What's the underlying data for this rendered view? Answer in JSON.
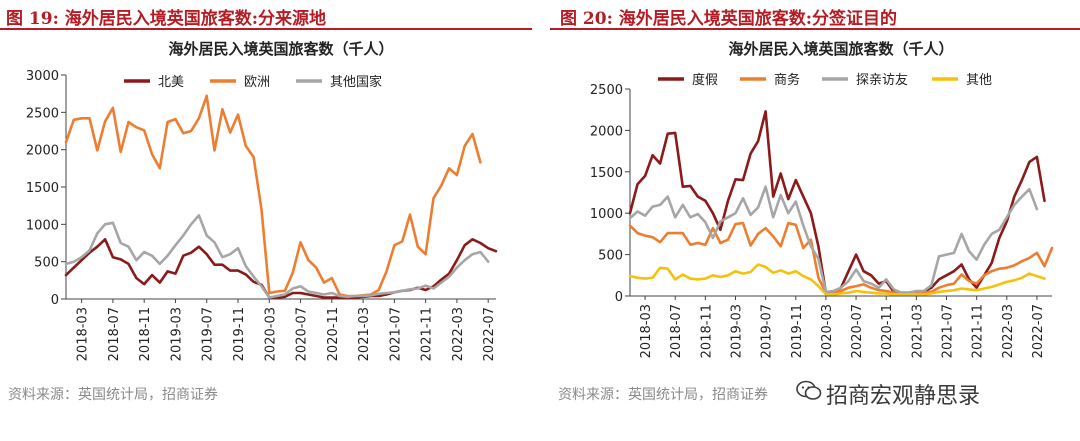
{
  "colors": {
    "title_red": "#b51c24",
    "source_gray": "#8a8a8a"
  },
  "left": {
    "figure_title": "图 19:  海外居民入境英国旅客数:分来源地",
    "source": "资料来源：英国统计局，招商证券"
  },
  "right": {
    "figure_title": "图 20:  海外居民入境英国旅客数:分签证目的",
    "source": "资料来源：英国统计局，招商证券"
  },
  "watermark": {
    "text": "招商宏观静思录",
    "icon": "wechat-icon"
  },
  "chart_data": [
    {
      "type": "line",
      "title": "海外居民入境英国旅客数（千人）",
      "ylim": [
        0,
        3000
      ],
      "yticks": [
        "0",
        "500",
        "1000",
        "1500",
        "2000",
        "2500",
        "3000"
      ],
      "xtick_labels": [
        "2018-03",
        "2018-07",
        "2018-11",
        "2019-03",
        "2019-07",
        "2019-11",
        "2020-03",
        "2020-07",
        "2020-11",
        "2021-03",
        "2021-07",
        "2021-11",
        "2022-03",
        "2022-07"
      ],
      "x_start": "2018-01",
      "series": [
        {
          "name": "北美",
          "color": "#8b1a1a",
          "values": [
            320,
            420,
            520,
            620,
            700,
            800,
            560,
            530,
            470,
            280,
            200,
            320,
            220,
            370,
            340,
            580,
            620,
            700,
            600,
            460,
            460,
            380,
            380,
            330,
            230,
            190,
            20,
            20,
            30,
            80,
            80,
            60,
            40,
            20,
            20,
            20,
            20,
            20,
            30,
            40,
            40,
            60,
            90,
            110,
            120,
            150,
            120,
            170,
            260,
            340,
            520,
            720,
            800,
            750,
            680,
            640
          ]
        },
        {
          "name": "欧洲",
          "color": "#ed7d31",
          "values": [
            2100,
            2400,
            2420,
            2420,
            1990,
            2380,
            2560,
            1970,
            2370,
            2300,
            2260,
            1940,
            1750,
            2370,
            2410,
            2220,
            2250,
            2420,
            2720,
            1990,
            2540,
            2230,
            2470,
            2050,
            1900,
            1200,
            80,
            100,
            110,
            350,
            760,
            520,
            420,
            220,
            280,
            60,
            40,
            40,
            50,
            60,
            120,
            370,
            720,
            770,
            1130,
            700,
            600,
            1350,
            1520,
            1750,
            1660,
            2050,
            2210,
            1830
          ]
        },
        {
          "name": "其他国家",
          "color": "#a6a6a6",
          "values": [
            470,
            500,
            560,
            650,
            880,
            1000,
            1020,
            750,
            700,
            520,
            630,
            580,
            470,
            580,
            720,
            850,
            1000,
            1120,
            850,
            760,
            560,
            600,
            680,
            440,
            300,
            170,
            20,
            40,
            60,
            140,
            170,
            100,
            80,
            60,
            80,
            40,
            30,
            40,
            40,
            50,
            70,
            80,
            90,
            110,
            130,
            140,
            180,
            140,
            220,
            300,
            420,
            520,
            600,
            630,
            500
          ]
        }
      ]
    },
    {
      "type": "line",
      "title": "海外居民入境英国旅客数（千人）",
      "ylim": [
        0,
        2500
      ],
      "yticks": [
        "0",
        "500",
        "1000",
        "1500",
        "2000",
        "2500"
      ],
      "xtick_labels": [
        "2018-03",
        "2018-07",
        "2018-11",
        "2019-03",
        "2019-07",
        "2019-11",
        "2020-03",
        "2020-07",
        "2020-11",
        "2021-03",
        "2021-07",
        "2021-11",
        "2022-03",
        "2022-07"
      ],
      "x_start": "2018-01",
      "series": [
        {
          "name": "度假",
          "color": "#8b1a1a",
          "values": [
            1000,
            1350,
            1450,
            1700,
            1600,
            1960,
            1970,
            1320,
            1330,
            1200,
            1150,
            1000,
            800,
            1150,
            1410,
            1400,
            1720,
            1870,
            2230,
            1200,
            1480,
            1170,
            1400,
            1200,
            1000,
            600,
            40,
            50,
            100,
            300,
            500,
            300,
            250,
            150,
            180,
            50,
            40,
            40,
            40,
            50,
            100,
            200,
            250,
            300,
            380,
            200,
            100,
            250,
            400,
            700,
            900,
            1200,
            1400,
            1620,
            1680,
            1150
          ]
        },
        {
          "name": "商务",
          "color": "#ed7d31",
          "values": [
            850,
            760,
            730,
            710,
            650,
            760,
            760,
            760,
            620,
            640,
            620,
            820,
            640,
            680,
            870,
            880,
            610,
            750,
            820,
            720,
            600,
            880,
            860,
            580,
            680,
            220,
            40,
            40,
            60,
            100,
            120,
            140,
            100,
            70,
            60,
            40,
            30,
            30,
            30,
            40,
            50,
            100,
            130,
            150,
            260,
            180,
            150,
            250,
            300,
            330,
            340,
            370,
            420,
            460,
            520,
            360,
            580
          ]
        },
        {
          "name": "探亲访友",
          "color": "#a6a6a6",
          "values": [
            940,
            1020,
            970,
            1080,
            1100,
            1200,
            950,
            1100,
            950,
            990,
            890,
            700,
            900,
            950,
            1000,
            1180,
            980,
            1070,
            1320,
            950,
            1220,
            1000,
            1140,
            850,
            600,
            450,
            50,
            60,
            100,
            180,
            320,
            180,
            150,
            100,
            200,
            80,
            40,
            40,
            60,
            60,
            130,
            480,
            500,
            520,
            750,
            540,
            440,
            620,
            750,
            800,
            950,
            1100,
            1200,
            1290,
            1050
          ]
        },
        {
          "name": "其他",
          "color": "#f4c20d",
          "values": [
            240,
            220,
            210,
            220,
            340,
            330,
            200,
            260,
            210,
            200,
            210,
            250,
            230,
            250,
            300,
            270,
            290,
            380,
            350,
            280,
            310,
            270,
            300,
            240,
            200,
            120,
            20,
            20,
            30,
            40,
            60,
            50,
            40,
            30,
            30,
            20,
            20,
            20,
            20,
            20,
            30,
            50,
            60,
            70,
            90,
            80,
            70,
            90,
            110,
            140,
            170,
            190,
            220,
            270,
            240,
            210
          ]
        }
      ]
    }
  ]
}
